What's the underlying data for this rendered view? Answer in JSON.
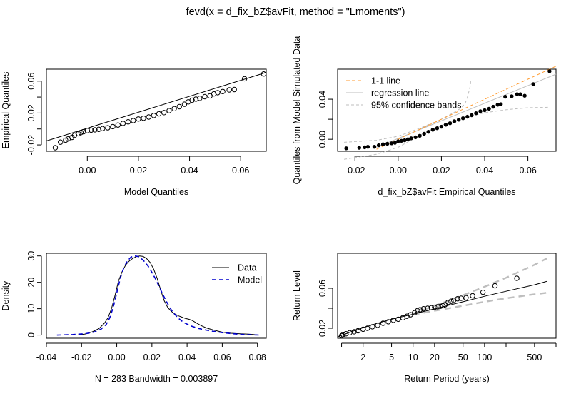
{
  "title": "fevd(x = d_fix_bZ$avFit, method = \"Lmoments\")",
  "chart_data": [
    {
      "type": "scatter",
      "panel": "qq-model",
      "title": "",
      "xlabel": "Model Quantiles",
      "ylabel": "Empirical Quantiles",
      "xlim": [
        -0.016,
        0.07
      ],
      "ylim": [
        -0.028,
        0.075
      ],
      "xticks": [
        0.0,
        0.02,
        0.04,
        0.06
      ],
      "xticklabels": [
        "0.00",
        "0.02",
        "0.04",
        "0.06"
      ],
      "yticks": [
        -0.02,
        0.02,
        0.06
      ],
      "yticklabels": [
        "-0.02",
        "0.02",
        "0.06"
      ],
      "yticks_minor": [
        0.0,
        0.04
      ],
      "grid": false,
      "reference_line": [
        [
          -0.016,
          -0.015
        ],
        [
          0.07,
          0.071
        ]
      ],
      "points": [
        [
          -0.0125,
          -0.0235
        ],
        [
          -0.0105,
          -0.0165
        ],
        [
          -0.0085,
          -0.014
        ],
        [
          -0.0075,
          -0.0125
        ],
        [
          -0.006,
          -0.0105
        ],
        [
          -0.005,
          -0.008
        ],
        [
          -0.0035,
          -0.006
        ],
        [
          -0.0025,
          -0.0045
        ],
        [
          -0.0015,
          -0.0035
        ],
        [
          0.0,
          -0.002
        ],
        [
          0.0015,
          -0.0015
        ],
        [
          0.003,
          -0.001
        ],
        [
          0.0045,
          -0.0005
        ],
        [
          0.006,
          0.0005
        ],
        [
          0.008,
          0.0015
        ],
        [
          0.01,
          0.003
        ],
        [
          0.012,
          0.005
        ],
        [
          0.014,
          0.007
        ],
        [
          0.016,
          0.009
        ],
        [
          0.018,
          0.0105
        ],
        [
          0.02,
          0.0125
        ],
        [
          0.022,
          0.0135
        ],
        [
          0.024,
          0.015
        ],
        [
          0.026,
          0.017
        ],
        [
          0.028,
          0.019
        ],
        [
          0.03,
          0.0205
        ],
        [
          0.032,
          0.023
        ],
        [
          0.034,
          0.0255
        ],
        [
          0.036,
          0.028
        ],
        [
          0.038,
          0.031
        ],
        [
          0.0395,
          0.034
        ],
        [
          0.041,
          0.036
        ],
        [
          0.0425,
          0.0375
        ],
        [
          0.044,
          0.0385
        ],
        [
          0.046,
          0.0405
        ],
        [
          0.048,
          0.0415
        ],
        [
          0.0495,
          0.044
        ],
        [
          0.051,
          0.0455
        ],
        [
          0.053,
          0.047
        ],
        [
          0.0555,
          0.049
        ],
        [
          0.0575,
          0.0495
        ],
        [
          0.0615,
          0.063
        ],
        [
          0.069,
          0.069
        ]
      ]
    },
    {
      "type": "scatter",
      "panel": "qq-simulated",
      "title": "",
      "xlabel": "d_fix_bZ$avFit Empirical Quantiles",
      "ylabel": "Quantiles from Model Simulated Data",
      "xlim": [
        -0.028,
        0.073
      ],
      "ylim": [
        -0.012,
        0.07
      ],
      "xticks": [
        -0.02,
        0.0,
        0.02,
        0.04,
        0.06
      ],
      "xticklabels": [
        "-0.02",
        "0.00",
        "0.02",
        "0.04",
        "0.06"
      ],
      "yticks": [
        0.0,
        0.04
      ],
      "yticklabels": [
        "0.00",
        "0.04"
      ],
      "yticks_minor": [
        0.02
      ],
      "grid": false,
      "legend_position": "top-left",
      "legend": [
        "1-1 line",
        "regression line",
        "95% confidence bands"
      ],
      "one_to_one_line": [
        [
          -0.01,
          -0.01
        ],
        [
          0.073,
          0.073
        ]
      ],
      "regression_line": [
        [
          -0.01,
          -0.008
        ],
        [
          0.073,
          0.065
        ]
      ],
      "upper_band": [
        [
          -0.025,
          -0.003
        ],
        [
          -0.01,
          -0.001
        ],
        [
          0.0,
          0.003
        ],
        [
          0.01,
          0.011
        ],
        [
          0.02,
          0.02
        ],
        [
          0.026,
          0.027
        ],
        [
          0.029,
          0.031
        ],
        [
          0.031,
          0.036
        ],
        [
          0.032,
          0.042
        ],
        [
          0.033,
          0.05
        ],
        [
          0.0335,
          0.055
        ],
        [
          0.0335,
          0.06
        ]
      ],
      "lower_band": [
        [
          -0.025,
          -0.02
        ],
        [
          -0.01,
          -0.015
        ],
        [
          0.0,
          -0.008
        ],
        [
          0.01,
          0.004
        ],
        [
          0.02,
          0.014
        ],
        [
          0.03,
          0.021
        ],
        [
          0.04,
          0.0265
        ],
        [
          0.05,
          0.0295
        ],
        [
          0.06,
          0.0315
        ],
        [
          0.07,
          0.032
        ]
      ],
      "points": [
        [
          -0.024,
          -0.009
        ],
        [
          -0.018,
          -0.0085
        ],
        [
          -0.0155,
          -0.008
        ],
        [
          -0.014,
          -0.0075
        ],
        [
          -0.011,
          -0.0075
        ],
        [
          -0.009,
          -0.006
        ],
        [
          -0.007,
          -0.005
        ],
        [
          -0.005,
          -0.0045
        ],
        [
          -0.003,
          -0.004
        ],
        [
          -0.0015,
          -0.0035
        ],
        [
          0.0,
          -0.002
        ],
        [
          0.0015,
          -0.0015
        ],
        [
          0.003,
          -0.001
        ],
        [
          0.0045,
          0.0
        ],
        [
          0.006,
          0.001
        ],
        [
          0.008,
          0.002
        ],
        [
          0.01,
          0.0035
        ],
        [
          0.012,
          0.0055
        ],
        [
          0.014,
          0.0075
        ],
        [
          0.016,
          0.0095
        ],
        [
          0.018,
          0.011
        ],
        [
          0.02,
          0.0125
        ],
        [
          0.022,
          0.0145
        ],
        [
          0.024,
          0.016
        ],
        [
          0.026,
          0.018
        ],
        [
          0.028,
          0.0195
        ],
        [
          0.03,
          0.021
        ],
        [
          0.032,
          0.0225
        ],
        [
          0.034,
          0.024
        ],
        [
          0.036,
          0.026
        ],
        [
          0.038,
          0.028
        ],
        [
          0.04,
          0.029
        ],
        [
          0.042,
          0.0305
        ],
        [
          0.044,
          0.0325
        ],
        [
          0.046,
          0.0345
        ],
        [
          0.0475,
          0.035
        ],
        [
          0.0495,
          0.0425
        ],
        [
          0.0525,
          0.043
        ],
        [
          0.055,
          0.045
        ],
        [
          0.0565,
          0.045
        ],
        [
          0.0585,
          0.0435
        ],
        [
          0.0625,
          0.055
        ],
        [
          0.07,
          0.068
        ]
      ]
    },
    {
      "type": "line",
      "panel": "density",
      "title": "",
      "xlabel": "N = 283   Bandwidth = 0.003897",
      "ylabel": "Density",
      "xlim": [
        -0.04,
        0.085
      ],
      "ylim": [
        -1.2,
        31
      ],
      "xticks": [
        -0.04,
        -0.02,
        0.0,
        0.02,
        0.04,
        0.06,
        0.08
      ],
      "xticklabels": [
        "-0.04",
        "-0.02",
        "0.00",
        "0.02",
        "0.04",
        "0.06",
        "0.08"
      ],
      "yticks": [
        0,
        10,
        20,
        30
      ],
      "yticklabels": [
        "0",
        "10",
        "20",
        "30"
      ],
      "grid": false,
      "legend_position": "top-right",
      "series": [
        {
          "name": "Data",
          "style": "solid",
          "color": "#000000",
          "points": [
            [
              -0.022,
              0.1
            ],
            [
              -0.018,
              0.4
            ],
            [
              -0.014,
              1.2
            ],
            [
              -0.01,
              2.5
            ],
            [
              -0.007,
              4.5
            ],
            [
              -0.005,
              6.5
            ],
            [
              -0.003,
              10.0
            ],
            [
              -0.001,
              15.0
            ],
            [
              0.001,
              20.5
            ],
            [
              0.003,
              24.0
            ],
            [
              0.005,
              26.5
            ],
            [
              0.007,
              28.0
            ],
            [
              0.009,
              29.0
            ],
            [
              0.011,
              29.7
            ],
            [
              0.013,
              30.0
            ],
            [
              0.015,
              29.8
            ],
            [
              0.017,
              29.0
            ],
            [
              0.019,
              27.5
            ],
            [
              0.021,
              25.0
            ],
            [
              0.023,
              21.5
            ],
            [
              0.025,
              17.0
            ],
            [
              0.027,
              13.0
            ],
            [
              0.029,
              10.5
            ],
            [
              0.031,
              9.0
            ],
            [
              0.033,
              8.0
            ],
            [
              0.035,
              7.3
            ],
            [
              0.037,
              6.8
            ],
            [
              0.039,
              6.3
            ],
            [
              0.041,
              6.0
            ],
            [
              0.043,
              5.5
            ],
            [
              0.045,
              4.7
            ],
            [
              0.048,
              3.6
            ],
            [
              0.051,
              2.7
            ],
            [
              0.055,
              1.9
            ],
            [
              0.06,
              1.1
            ],
            [
              0.065,
              0.7
            ],
            [
              0.07,
              0.5
            ],
            [
              0.075,
              0.35
            ],
            [
              0.08,
              0.1
            ]
          ]
        },
        {
          "name": "Model",
          "style": "dashed",
          "color": "#0000cd",
          "points": [
            [
              -0.034,
              0.0
            ],
            [
              -0.025,
              0.2
            ],
            [
              -0.018,
              0.5
            ],
            [
              -0.013,
              1.1
            ],
            [
              -0.009,
              2.2
            ],
            [
              -0.006,
              4.0
            ],
            [
              -0.004,
              6.5
            ],
            [
              -0.002,
              10.5
            ],
            [
              0.0,
              16.0
            ],
            [
              0.002,
              21.5
            ],
            [
              0.004,
              25.5
            ],
            [
              0.006,
              28.0
            ],
            [
              0.008,
              29.5
            ],
            [
              0.01,
              30.0
            ],
            [
              0.012,
              29.8
            ],
            [
              0.014,
              29.0
            ],
            [
              0.016,
              27.7
            ],
            [
              0.018,
              26.0
            ],
            [
              0.02,
              23.8
            ],
            [
              0.022,
              21.3
            ],
            [
              0.024,
              18.5
            ],
            [
              0.026,
              15.7
            ],
            [
              0.028,
              13.0
            ],
            [
              0.03,
              10.6
            ],
            [
              0.032,
              8.6
            ],
            [
              0.035,
              6.4
            ],
            [
              0.038,
              4.8
            ],
            [
              0.042,
              3.5
            ],
            [
              0.046,
              2.6
            ],
            [
              0.05,
              2.0
            ],
            [
              0.055,
              1.4
            ],
            [
              0.06,
              0.9
            ],
            [
              0.066,
              0.5
            ],
            [
              0.072,
              0.2
            ],
            [
              0.082,
              0.0
            ]
          ]
        }
      ]
    },
    {
      "type": "scatter",
      "panel": "return-level",
      "title": "",
      "xlabel": "Return Period (years)",
      "ylabel": "Return Level",
      "x_scale": "log",
      "xlim": [
        0.88,
        1000
      ],
      "ylim": [
        0.01,
        0.095
      ],
      "xticks": [
        2,
        5,
        10,
        20,
        50,
        100,
        500
      ],
      "xticklabels": [
        "2",
        "5",
        "10",
        "20",
        "50",
        "100",
        "500"
      ],
      "xticks_minor": [
        1,
        200,
        1000
      ],
      "yticks": [
        0.02,
        0.06
      ],
      "yticklabels": [
        "0.02",
        "0.06"
      ],
      "yticks_minor": [
        0.04
      ],
      "grid": false,
      "ci_color": "#bebebe",
      "fit_line": [
        [
          0.88,
          0.0115
        ],
        [
          1.5,
          0.0175
        ],
        [
          2,
          0.0205
        ],
        [
          3,
          0.0245
        ],
        [
          5,
          0.029
        ],
        [
          7,
          0.0315
        ],
        [
          10,
          0.034
        ],
        [
          20,
          0.0395
        ],
        [
          50,
          0.0465
        ],
        [
          100,
          0.052
        ],
        [
          200,
          0.057
        ],
        [
          500,
          0.0635
        ],
        [
          750,
          0.067
        ]
      ],
      "upper_ci": [
        [
          10,
          0.0345
        ],
        [
          20,
          0.0425
        ],
        [
          50,
          0.053
        ],
        [
          100,
          0.0615
        ],
        [
          200,
          0.0705
        ],
        [
          500,
          0.0835
        ],
        [
          750,
          0.09
        ]
      ],
      "lower_ci": [
        [
          10,
          0.0335
        ],
        [
          20,
          0.0375
        ],
        [
          50,
          0.0425
        ],
        [
          100,
          0.0465
        ],
        [
          200,
          0.05
        ],
        [
          500,
          0.054
        ],
        [
          750,
          0.0555
        ]
      ],
      "points": [
        [
          1.0,
          0.0125
        ],
        [
          1.05,
          0.0135
        ],
        [
          1.15,
          0.0145
        ],
        [
          1.3,
          0.0155
        ],
        [
          1.5,
          0.0165
        ],
        [
          1.7,
          0.0175
        ],
        [
          2.0,
          0.019
        ],
        [
          2.3,
          0.02
        ],
        [
          2.7,
          0.0215
        ],
        [
          3.2,
          0.023
        ],
        [
          3.8,
          0.025
        ],
        [
          4.5,
          0.0265
        ],
        [
          5.3,
          0.028
        ],
        [
          6.2,
          0.029
        ],
        [
          7.2,
          0.0305
        ],
        [
          8.2,
          0.032
        ],
        [
          9.2,
          0.0335
        ],
        [
          10.5,
          0.0355
        ],
        [
          11.5,
          0.0375
        ],
        [
          12.5,
          0.0385
        ],
        [
          14.0,
          0.0395
        ],
        [
          16.0,
          0.04
        ],
        [
          18.0,
          0.0405
        ],
        [
          20.0,
          0.041
        ],
        [
          22.0,
          0.0415
        ],
        [
          24.0,
          0.042
        ],
        [
          26.0,
          0.0425
        ],
        [
          28.0,
          0.0435
        ],
        [
          31.0,
          0.046
        ],
        [
          34.0,
          0.047
        ],
        [
          37.0,
          0.048
        ],
        [
          42.0,
          0.0495
        ],
        [
          47.0,
          0.05
        ],
        [
          55.0,
          0.0505
        ],
        [
          68.0,
          0.0525
        ],
        [
          95.0,
          0.056
        ],
        [
          140.0,
          0.0625
        ],
        [
          283.0,
          0.07
        ]
      ]
    }
  ]
}
